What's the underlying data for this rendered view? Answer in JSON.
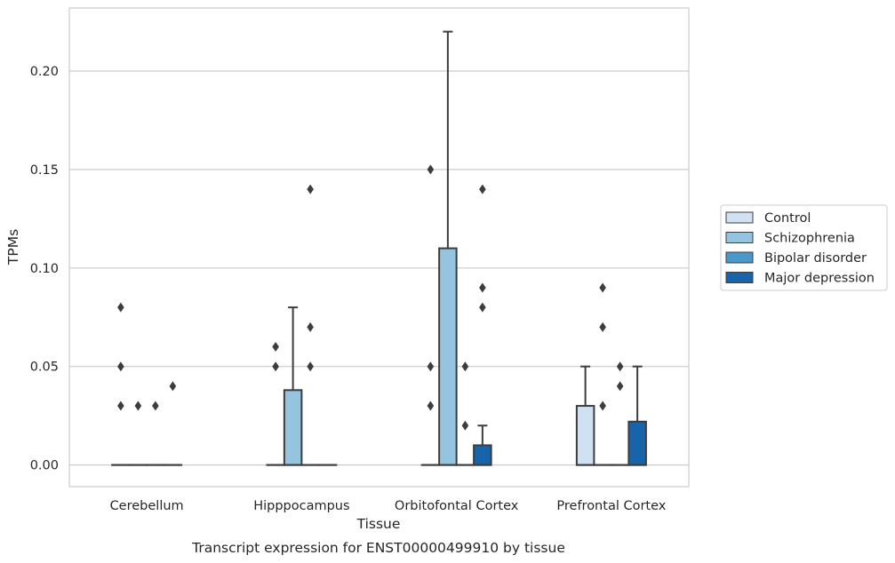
{
  "chart_data": {
    "type": "box",
    "categories": [
      "Cerebellum",
      "Hipppocampus",
      "Orbitofontal Cortex",
      "Prefrontal Cortex"
    ],
    "xlabel": "Tissue",
    "ylabel": "TPMs",
    "caption": "Transcript expression for ENST00000499910 by tissue",
    "ylim": [
      -0.011,
      0.232
    ],
    "yticks": [
      0.0,
      0.05,
      0.1,
      0.15,
      0.2
    ],
    "ytick_labels": [
      "0.00",
      "0.05",
      "0.10",
      "0.15",
      "0.20"
    ],
    "grid": "horizontal",
    "legend_position": "right-outside",
    "series": [
      {
        "name": "Control",
        "color": "#d0e1f2",
        "boxes": [
          {
            "q1": 0,
            "median": 0,
            "q3": 0,
            "whisker_low": 0,
            "whisker_high": 0,
            "outliers": [
              0.08,
              0.05,
              0.03
            ]
          },
          {
            "q1": 0,
            "median": 0,
            "q3": 0,
            "whisker_low": 0,
            "whisker_high": 0,
            "outliers": [
              0.06,
              0.05
            ]
          },
          {
            "q1": 0,
            "median": 0,
            "q3": 0,
            "whisker_low": 0,
            "whisker_high": 0,
            "outliers": [
              0.15,
              0.05,
              0.03
            ]
          },
          {
            "q1": 0,
            "median": 0,
            "q3": 0.03,
            "whisker_low": 0,
            "whisker_high": 0.05,
            "outliers": []
          }
        ]
      },
      {
        "name": "Schizophrenia",
        "color": "#94c4df",
        "boxes": [
          {
            "q1": 0,
            "median": 0,
            "q3": 0,
            "whisker_low": 0,
            "whisker_high": 0,
            "outliers": [
              0.03
            ]
          },
          {
            "q1": 0,
            "median": 0,
            "q3": 0.038,
            "whisker_low": 0,
            "whisker_high": 0.08,
            "outliers": []
          },
          {
            "q1": 0,
            "median": 0,
            "q3": 0.11,
            "whisker_low": 0,
            "whisker_high": 0.22,
            "outliers": []
          },
          {
            "q1": 0,
            "median": 0,
            "q3": 0,
            "whisker_low": 0,
            "whisker_high": 0,
            "outliers": [
              0.09,
              0.07,
              0.03
            ]
          }
        ]
      },
      {
        "name": "Bipolar disorder",
        "color": "#4a98c9",
        "boxes": [
          {
            "q1": 0,
            "median": 0,
            "q3": 0,
            "whisker_low": 0,
            "whisker_high": 0,
            "outliers": [
              0.03
            ]
          },
          {
            "q1": 0,
            "median": 0,
            "q3": 0,
            "whisker_low": 0,
            "whisker_high": 0,
            "outliers": [
              0.14,
              0.07,
              0.05
            ]
          },
          {
            "q1": 0,
            "median": 0,
            "q3": 0,
            "whisker_low": 0,
            "whisker_high": 0,
            "outliers": [
              0.05,
              0.02
            ]
          },
          {
            "q1": 0,
            "median": 0,
            "q3": 0,
            "whisker_low": 0,
            "whisker_high": 0,
            "outliers": [
              0.05,
              0.04
            ]
          }
        ]
      },
      {
        "name": "Major depression",
        "color": "#1764ab",
        "boxes": [
          {
            "q1": 0,
            "median": 0,
            "q3": 0,
            "whisker_low": 0,
            "whisker_high": 0,
            "outliers": [
              0.04
            ]
          },
          {
            "q1": 0,
            "median": 0,
            "q3": 0,
            "whisker_low": 0,
            "whisker_high": 0,
            "outliers": []
          },
          {
            "q1": 0,
            "median": 0,
            "q3": 0.01,
            "whisker_low": 0,
            "whisker_high": 0.02,
            "outliers": [
              0.14,
              0.09,
              0.08
            ]
          },
          {
            "q1": 0,
            "median": 0,
            "q3": 0.022,
            "whisker_low": 0,
            "whisker_high": 0.05,
            "outliers": []
          }
        ]
      }
    ]
  }
}
